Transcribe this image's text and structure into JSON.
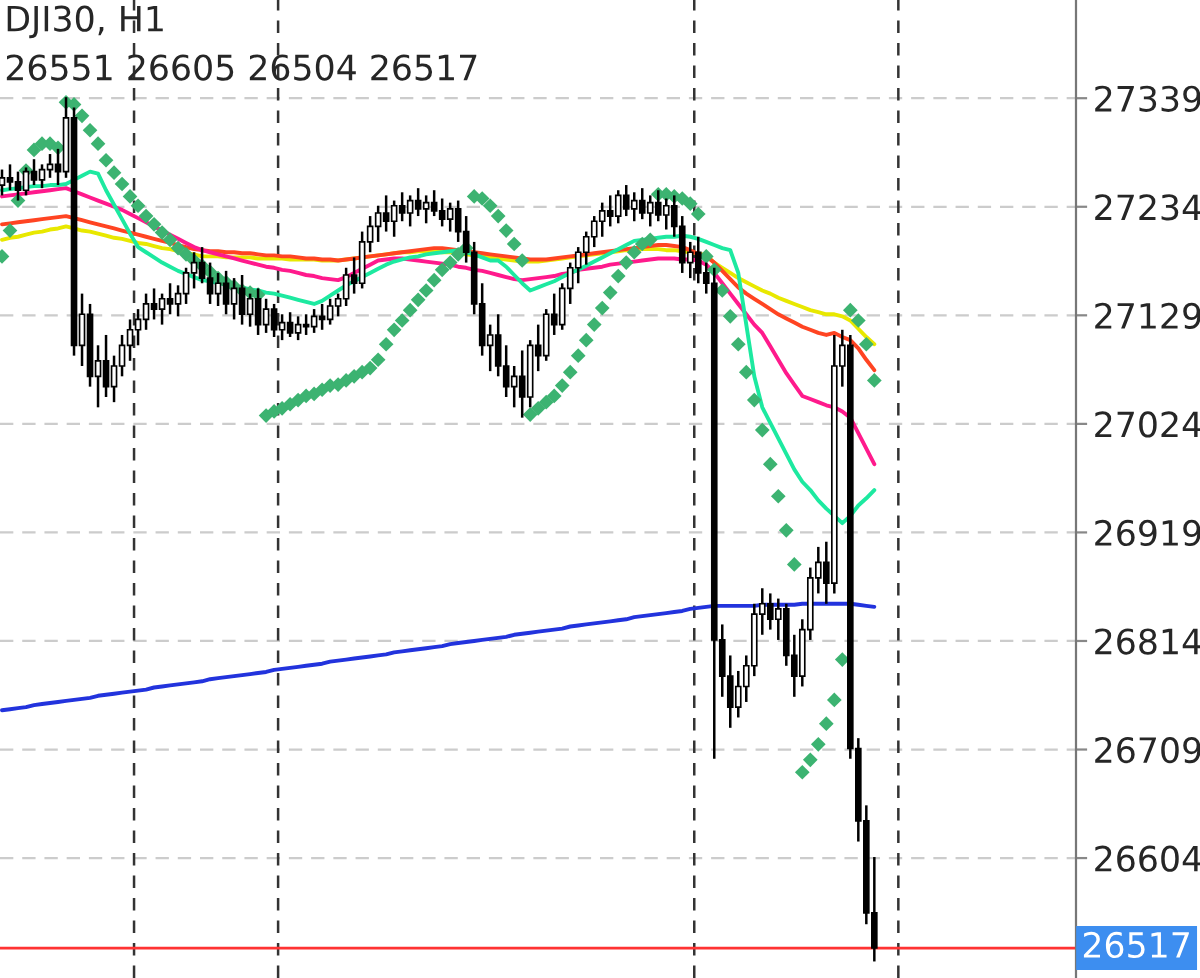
{
  "chart_data": {
    "type": "candlestick",
    "title": "DJI30, H1",
    "subtitle": "26551 26605 26504 26517",
    "categories": [
      null,
      null,
      null,
      null,
      null,
      null,
      null,
      null,
      null,
      null,
      null,
      null,
      null,
      null,
      null,
      null,
      null,
      null,
      null,
      null,
      null,
      null,
      null,
      null,
      null,
      null,
      null,
      null,
      null,
      null,
      null,
      null,
      null,
      null,
      null,
      null,
      null,
      null,
      null,
      null,
      null,
      null,
      null,
      null,
      null,
      null,
      null,
      null,
      null,
      null,
      null,
      null,
      null,
      null,
      null,
      null,
      null,
      null,
      null,
      null,
      null,
      null,
      null,
      null,
      null,
      null,
      null,
      null,
      null,
      null,
      null,
      null,
      null,
      null,
      null,
      null,
      null,
      null,
      null,
      null,
      null,
      null,
      null,
      null,
      null,
      null,
      null,
      null,
      null,
      null,
      null,
      null,
      null,
      null,
      null,
      null,
      null,
      null,
      null,
      null,
      null,
      null,
      null,
      null,
      null,
      null,
      null,
      null,
      null,
      null
    ],
    "ohlc": [
      [
        27255,
        27270,
        27245,
        27262
      ],
      [
        27262,
        27275,
        27250,
        27258
      ],
      [
        27258,
        27268,
        27240,
        27250
      ],
      [
        27250,
        27272,
        27245,
        27268
      ],
      [
        27268,
        27280,
        27255,
        27260
      ],
      [
        27260,
        27275,
        27252,
        27270
      ],
      [
        27270,
        27285,
        27262,
        27275
      ],
      [
        27275,
        27290,
        27255,
        27268
      ],
      [
        27268,
        27340,
        27262,
        27320
      ],
      [
        27320,
        27330,
        27090,
        27100
      ],
      [
        27100,
        27150,
        27080,
        27130
      ],
      [
        27130,
        27140,
        27060,
        27070
      ],
      [
        27070,
        27100,
        27040,
        27085
      ],
      [
        27085,
        27110,
        27050,
        27060
      ],
      [
        27060,
        27090,
        27045,
        27080
      ],
      [
        27080,
        27110,
        27070,
        27100
      ],
      [
        27100,
        27125,
        27085,
        27115
      ],
      [
        27115,
        27135,
        27100,
        27125
      ],
      [
        27125,
        27150,
        27115,
        27140
      ],
      [
        27140,
        27155,
        27125,
        27135
      ],
      [
        27135,
        27150,
        27120,
        27145
      ],
      [
        27145,
        27160,
        27130,
        27140
      ],
      [
        27140,
        27158,
        27128,
        27150
      ],
      [
        27150,
        27175,
        27140,
        27170
      ],
      [
        27170,
        27190,
        27155,
        27180
      ],
      [
        27180,
        27195,
        27160,
        27165
      ],
      [
        27165,
        27180,
        27140,
        27150
      ],
      [
        27150,
        27170,
        27138,
        27160
      ],
      [
        27160,
        27172,
        27130,
        27140
      ],
      [
        27140,
        27165,
        27125,
        27155
      ],
      [
        27155,
        27168,
        27120,
        27130
      ],
      [
        27130,
        27150,
        27118,
        27145
      ],
      [
        27145,
        27155,
        27110,
        27120
      ],
      [
        27120,
        27145,
        27112,
        27135
      ],
      [
        27135,
        27140,
        27108,
        27115
      ],
      [
        27115,
        27130,
        27105,
        27122
      ],
      [
        27122,
        27132,
        27108,
        27112
      ],
      [
        27112,
        27128,
        27105,
        27120
      ],
      [
        27120,
        27130,
        27110,
        27118
      ],
      [
        27118,
        27135,
        27112,
        27128
      ],
      [
        27128,
        27140,
        27115,
        27125
      ],
      [
        27125,
        27145,
        27120,
        27138
      ],
      [
        27138,
        27150,
        27128,
        27145
      ],
      [
        27145,
        27175,
        27138,
        27168
      ],
      [
        27168,
        27185,
        27150,
        27160
      ],
      [
        27160,
        27210,
        27155,
        27200
      ],
      [
        27200,
        27225,
        27190,
        27215
      ],
      [
        27215,
        27235,
        27200,
        27228
      ],
      [
        27228,
        27245,
        27210,
        27220
      ],
      [
        27220,
        27240,
        27205,
        27235
      ],
      [
        27235,
        27248,
        27220,
        27228
      ],
      [
        27228,
        27245,
        27215,
        27240
      ],
      [
        27240,
        27252,
        27225,
        27232
      ],
      [
        27232,
        27245,
        27218,
        27238
      ],
      [
        27238,
        27250,
        27225,
        27230
      ],
      [
        27230,
        27242,
        27215,
        27222
      ],
      [
        27222,
        27238,
        27210,
        27232
      ],
      [
        27232,
        27240,
        27200,
        27210
      ],
      [
        27210,
        27225,
        27180,
        27190
      ],
      [
        27190,
        27200,
        27130,
        27140
      ],
      [
        27140,
        27160,
        27090,
        27100
      ],
      [
        27100,
        27120,
        27075,
        27110
      ],
      [
        27110,
        27130,
        27070,
        27080
      ],
      [
        27080,
        27100,
        27050,
        27060
      ],
      [
        27060,
        27080,
        27040,
        27070
      ],
      [
        27070,
        27095,
        27030,
        27050
      ],
      [
        27050,
        27105,
        27040,
        27100
      ],
      [
        27100,
        27120,
        27075,
        27090
      ],
      [
        27090,
        27135,
        27085,
        27130
      ],
      [
        27130,
        27150,
        27110,
        27120
      ],
      [
        27120,
        27160,
        27115,
        27155
      ],
      [
        27155,
        27180,
        27140,
        27175
      ],
      [
        27175,
        27195,
        27160,
        27190
      ],
      [
        27190,
        27210,
        27178,
        27205
      ],
      [
        27205,
        27225,
        27195,
        27220
      ],
      [
        27220,
        27238,
        27205,
        27230
      ],
      [
        27230,
        27245,
        27215,
        27225
      ],
      [
        27225,
        27250,
        27218,
        27245
      ],
      [
        27245,
        27255,
        27225,
        27232
      ],
      [
        27232,
        27248,
        27220,
        27240
      ],
      [
        27240,
        27252,
        27222,
        27228
      ],
      [
        27228,
        27245,
        27215,
        27238
      ],
      [
        27238,
        27250,
        27220,
        27226
      ],
      [
        27226,
        27242,
        27212,
        27235
      ],
      [
        27235,
        27245,
        27205,
        27215
      ],
      [
        27215,
        27225,
        27170,
        27180
      ],
      [
        27180,
        27200,
        27165,
        27190
      ],
      [
        27190,
        27205,
        27160,
        27170
      ],
      [
        27170,
        27180,
        27150,
        27160
      ],
      [
        27160,
        27175,
        26700,
        26815
      ],
      [
        26815,
        26830,
        26760,
        26780
      ],
      [
        26780,
        26800,
        26730,
        26750
      ],
      [
        26750,
        26785,
        26740,
        26770
      ],
      [
        26770,
        26800,
        26755,
        26790
      ],
      [
        26790,
        26850,
        26780,
        26840
      ],
      [
        26840,
        26865,
        26820,
        26850
      ],
      [
        26850,
        26860,
        26825,
        26835
      ],
      [
        26835,
        26855,
        26815,
        26845
      ],
      [
        26845,
        26850,
        26790,
        26800
      ],
      [
        26800,
        26820,
        26760,
        26780
      ],
      [
        26780,
        26835,
        26770,
        26825
      ],
      [
        26825,
        26885,
        26815,
        26875
      ],
      [
        26875,
        26905,
        26860,
        26890
      ],
      [
        26890,
        26910,
        26850,
        26870
      ],
      [
        26870,
        27110,
        26860,
        27080
      ],
      [
        27080,
        27115,
        27060,
        27100
      ],
      [
        27100,
        27110,
        26700,
        26710
      ],
      [
        26710,
        26720,
        26620,
        26640
      ],
      [
        26640,
        26655,
        26540,
        26551
      ],
      [
        26551,
        26605,
        26504,
        26517
      ]
    ],
    "series": [
      {
        "type": "line",
        "color": "#2233dd",
        "values": [
          26747,
          26748,
          26749,
          26750,
          26752,
          26753,
          26754,
          26755,
          26756,
          26757,
          26758,
          26759,
          26761,
          26762,
          26763,
          26764,
          26765,
          26766,
          26767,
          26769,
          26770,
          26771,
          26772,
          26773,
          26774,
          26775,
          26777,
          26778,
          26779,
          26780,
          26781,
          26782,
          26783,
          26784,
          26786,
          26787,
          26788,
          26789,
          26790,
          26791,
          26792,
          26794,
          26795,
          26796,
          26797,
          26798,
          26799,
          26800,
          26801,
          26803,
          26804,
          26805,
          26806,
          26807,
          26808,
          26809,
          26811,
          26812,
          26813,
          26814,
          26815,
          26816,
          26817,
          26818,
          26820,
          26821,
          26822,
          26823,
          26824,
          26825,
          26826,
          26828,
          26829,
          26830,
          26831,
          26832,
          26833,
          26834,
          26835,
          26837,
          26838,
          26839,
          26840,
          26841,
          26842,
          26843,
          26845,
          26846,
          26847,
          26848,
          26848,
          26848,
          26848,
          26848,
          26848,
          26849,
          26849,
          26849,
          26849,
          26849,
          26850,
          26850,
          26850,
          26850,
          26850,
          26850,
          26850,
          26849,
          26848,
          26847
        ]
      },
      {
        "type": "line",
        "color": "#e8e800",
        "values": [
          27202,
          27204,
          27205,
          27207,
          27209,
          27210,
          27212,
          27213,
          27215,
          27213,
          27211,
          27210,
          27208,
          27206,
          27204,
          27203,
          27201,
          27199,
          27198,
          27196,
          27194,
          27193,
          27191,
          27189,
          27188,
          27186,
          27186,
          27186,
          27185,
          27185,
          27185,
          27185,
          27184,
          27184,
          27184,
          27184,
          27183,
          27183,
          27183,
          27183,
          27182,
          27182,
          27182,
          27183,
          27184,
          27185,
          27186,
          27187,
          27188,
          27189,
          27190,
          27190,
          27191,
          27191,
          27191,
          27190,
          27190,
          27189,
          27188,
          27187,
          27186,
          27185,
          27184,
          27183,
          27182,
          27181,
          27181,
          27181,
          27182,
          27183,
          27184,
          27185,
          27186,
          27187,
          27188,
          27189,
          27190,
          27191,
          27192,
          27192,
          27193,
          27193,
          27193,
          27192,
          27192,
          27191,
          27190,
          27189,
          27187,
          27180,
          27175,
          27170,
          27165,
          27161,
          27157,
          27153,
          27150,
          27146,
          27143,
          27140,
          27137,
          27134,
          27132,
          27130,
          27130,
          27128,
          27124,
          27116,
          27108,
          27101
        ]
      },
      {
        "type": "line",
        "color": "#ff4422",
        "values": [
          27217,
          27218,
          27219,
          27220,
          27221,
          27222,
          27223,
          27224,
          27225,
          27223,
          27221,
          27219,
          27217,
          27215,
          27213,
          27211,
          27209,
          27207,
          27205,
          27203,
          27201,
          27199,
          27197,
          27195,
          27193,
          27192,
          27191,
          27191,
          27190,
          27190,
          27189,
          27189,
          27188,
          27187,
          27187,
          27186,
          27186,
          27185,
          27184,
          27184,
          27183,
          27183,
          27182,
          27183,
          27184,
          27185,
          27186,
          27187,
          27188,
          27189,
          27190,
          27191,
          27192,
          27193,
          27194,
          27194,
          27193,
          27192,
          27191,
          27190,
          27189,
          27188,
          27187,
          27186,
          27185,
          27184,
          27183,
          27183,
          27183,
          27184,
          27185,
          27186,
          27187,
          27188,
          27189,
          27190,
          27191,
          27192,
          27193,
          27194,
          27195,
          27196,
          27197,
          27197,
          27196,
          27195,
          27192,
          27188,
          27186,
          27180,
          27172,
          27164,
          27156,
          27150,
          27145,
          27140,
          27135,
          27130,
          27126,
          27122,
          27118,
          27115,
          27112,
          27110,
          27112,
          27108,
          27105,
          27097,
          27086,
          27076
        ]
      },
      {
        "type": "line",
        "color": "#ff1a8c",
        "values": [
          27244,
          27245,
          27246,
          27247,
          27248,
          27249,
          27250,
          27251,
          27252,
          27249,
          27246,
          27243,
          27240,
          27237,
          27234,
          27231,
          27227,
          27223,
          27219,
          27215,
          27211,
          27207,
          27203,
          27199,
          27195,
          27192,
          27190,
          27188,
          27186,
          27184,
          27182,
          27180,
          27178,
          27176,
          27175,
          27173,
          27172,
          27170,
          27168,
          27167,
          27165,
          27164,
          27163,
          27166,
          27170,
          27174,
          27178,
          27182,
          27183,
          27184,
          27184,
          27183,
          27182,
          27181,
          27180,
          27179,
          27178,
          27176,
          27175,
          27173,
          27172,
          27170,
          27168,
          27166,
          27164,
          27163,
          27164,
          27165,
          27166,
          27167,
          27169,
          27170,
          27173,
          27174,
          27175,
          27176,
          27178,
          27179,
          27180,
          27181,
          27182,
          27183,
          27184,
          27184,
          27184,
          27183,
          27183,
          27182,
          27178,
          27170,
          27160,
          27150,
          27140,
          27130,
          27120,
          27112,
          27099,
          27086,
          27073,
          27062,
          27051,
          27048,
          27045,
          27042,
          27040,
          27036,
          27030,
          27015,
          27000,
          26985
        ]
      },
      {
        "type": "line",
        "color": "#1de9a0",
        "values": [
          27250,
          27251,
          27252,
          27253,
          27254,
          27254,
          27255,
          27255,
          27256,
          27260,
          27264,
          27268,
          27266,
          27250,
          27236,
          27222,
          27208,
          27195,
          27190,
          27185,
          27180,
          27176,
          27172,
          27169,
          27166,
          27163,
          27162,
          27160,
          27159,
          27157,
          27156,
          27154,
          27153,
          27151,
          27150,
          27148,
          27146,
          27144,
          27142,
          27140,
          27143,
          27148,
          27153,
          27158,
          27162,
          27166,
          27170,
          27174,
          27178,
          27181,
          27183,
          27185,
          27186,
          27188,
          27189,
          27190,
          27191,
          27192,
          27190,
          27188,
          27185,
          27182,
          27182,
          27176,
          27168,
          27160,
          27153,
          27156,
          27159,
          27162,
          27166,
          27170,
          27173,
          27177,
          27181,
          27185,
          27189,
          27193,
          27197,
          27201,
          27202,
          27203,
          27204,
          27205,
          27205,
          27206,
          27205,
          27203,
          27200,
          27197,
          27194,
          27192,
          27170,
          27120,
          27070,
          27040,
          27025,
          27010,
          26995,
          26980,
          26968,
          26960,
          26950,
          26942,
          26935,
          26928,
          26935,
          26945,
          26952,
          26960
        ]
      },
      {
        "type": "scatter",
        "marker": "diamond",
        "color": "#3cb371",
        "values": [
          27186,
          27211,
          27240,
          27269,
          27289,
          27295,
          27295,
          27291,
          27335,
          27333,
          27322,
          27308,
          27295,
          27279,
          27267,
          27256,
          27244,
          27235,
          27225,
          27217,
          27209,
          27202,
          27194,
          27188,
          27182,
          27177,
          27171,
          27165,
          27161,
          27157,
          27153,
          27151,
          27149,
          27032,
          27036,
          27039,
          27043,
          27047,
          27051,
          27053,
          27057,
          27061,
          27062,
          27066,
          27070,
          27074,
          27078,
          27086,
          27101,
          27115,
          27124,
          27134,
          27144,
          27153,
          27163,
          27173,
          27180,
          27188,
          27194,
          27244,
          27242,
          27235,
          27225,
          27211,
          27198,
          27182,
          27033,
          27039,
          27045,
          27051,
          27061,
          27074,
          27090,
          27105,
          27120,
          27136,
          27151,
          27167,
          27180,
          27190,
          27198,
          27202,
          27246,
          27246,
          27244,
          27242,
          27237,
          27227,
          27186,
          27173,
          27153,
          27128,
          27101,
          27074,
          27047,
          27018,
          26985,
          26954,
          26921,
          26888,
          26687,
          26699,
          26714,
          26734,
          26757,
          26796,
          27134,
          27124,
          27101,
          27066
        ]
      }
    ],
    "ylim": [
      26488,
      27434
    ],
    "yticks": [
      26604,
      26709,
      26814,
      26919,
      27024,
      27129,
      27234,
      27339
    ],
    "grid": "y",
    "legend": false,
    "tick_labels": "y",
    "ref_lines": [
      {
        "axis": "y",
        "value": 26517,
        "label": "26517",
        "color": "#ff3333"
      }
    ]
  }
}
